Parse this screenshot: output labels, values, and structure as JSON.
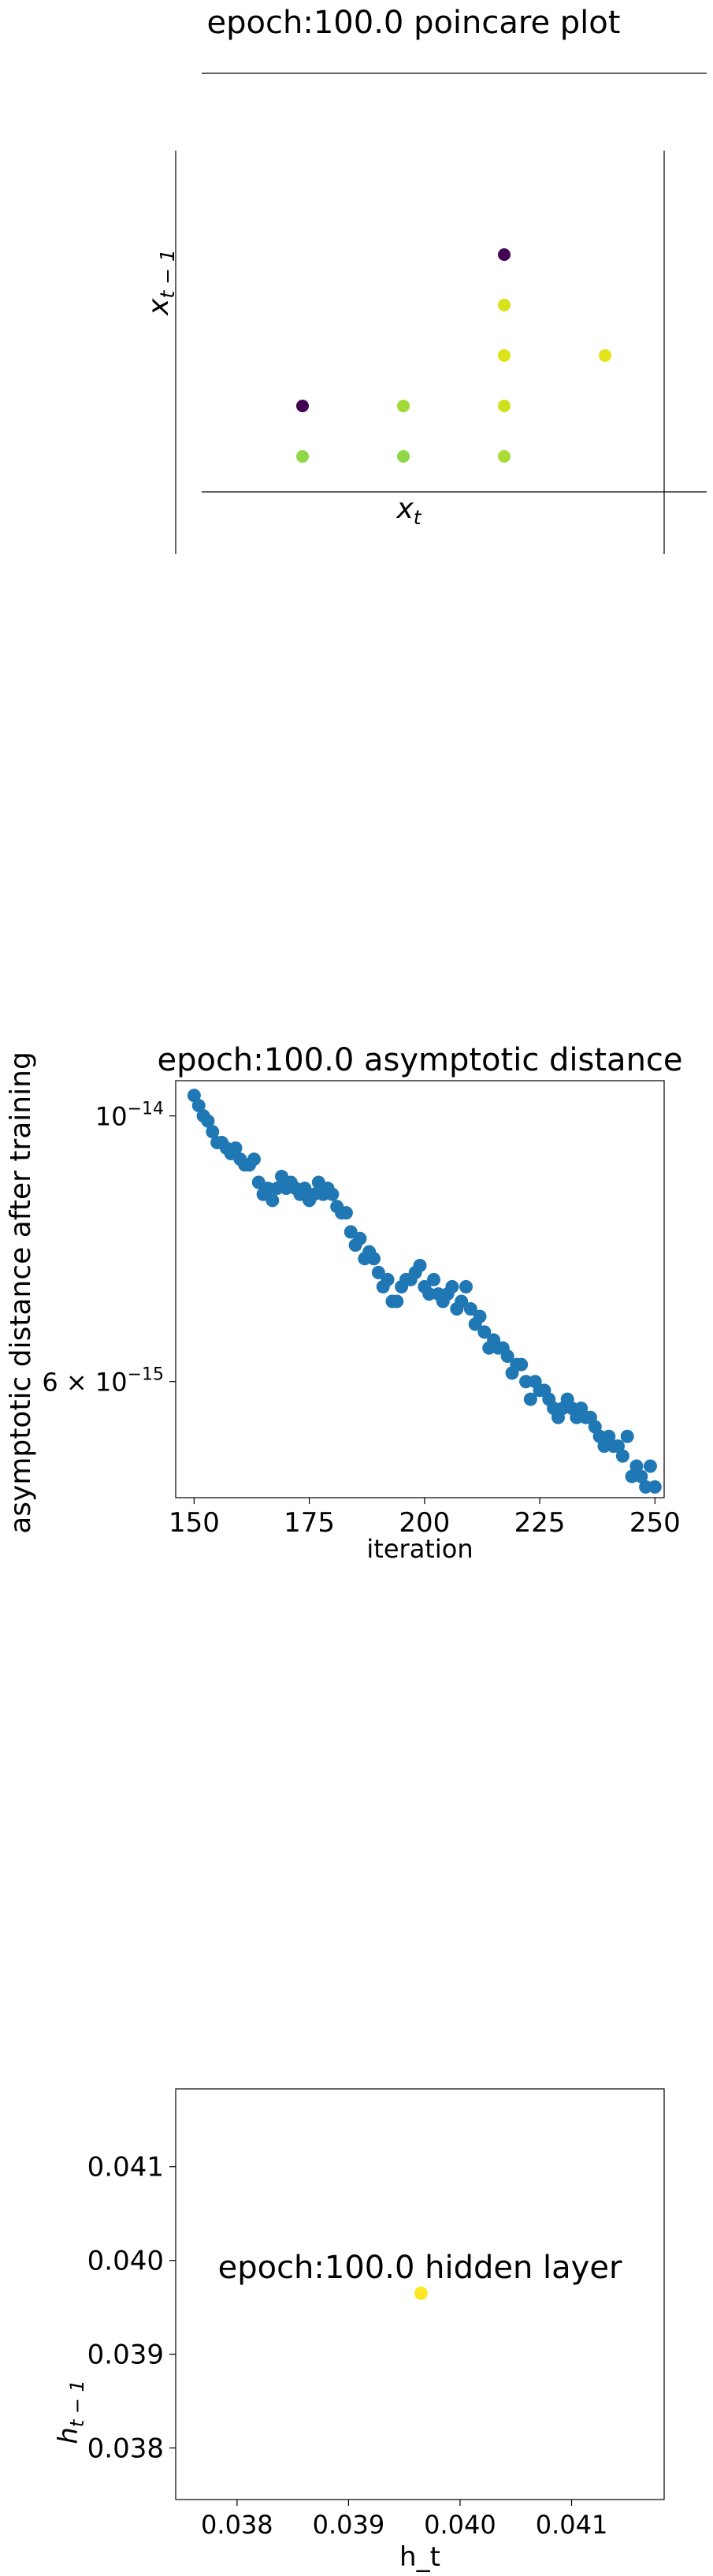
{
  "chart_data": [
    {
      "type": "scatter",
      "title": "epoch:100.0 poincare plot",
      "xlabel": "x_t",
      "ylabel": "x_{t-1}",
      "grid": false,
      "axes_style": "centered spines, no tick labels",
      "colormap": "viridis",
      "points": [
        {
          "x": 1,
          "y": 1,
          "color": "#8fd744"
        },
        {
          "x": 2,
          "y": 1,
          "color": "#8fd744"
        },
        {
          "x": 3,
          "y": 1,
          "color": "#a8db34"
        },
        {
          "x": 1,
          "y": 2,
          "color": "#440154"
        },
        {
          "x": 2,
          "y": 2,
          "color": "#a0da39"
        },
        {
          "x": 3,
          "y": 2,
          "color": "#d0e11c"
        },
        {
          "x": 3,
          "y": 3,
          "color": "#dde318"
        },
        {
          "x": 4,
          "y": 3,
          "color": "#e5e419"
        },
        {
          "x": 3,
          "y": 4,
          "color": "#d8e219"
        },
        {
          "x": 3,
          "y": 5,
          "color": "#440154"
        }
      ]
    },
    {
      "type": "scatter",
      "title": "epoch:100.0 asymptotic distance",
      "xlabel": "iteration",
      "ylabel": "asymptotic distance after training",
      "xlim": [
        146,
        252
      ],
      "ylim": [
        4.8e-15,
        1.07e-14
      ],
      "yscale": "log",
      "xticks": [
        "150",
        "175",
        "200",
        "225",
        "250"
      ],
      "yticks": [
        {
          "value": 1e-14,
          "mantissa": "10",
          "exponent": "−14"
        },
        {
          "value": 6e-15,
          "mantissa": "6 × 10",
          "exponent": "−15"
        }
      ],
      "color": "#1f77b4",
      "grid": false,
      "x": [
        150,
        151,
        152,
        153,
        154,
        155,
        156,
        157,
        158,
        159,
        160,
        161,
        162,
        163,
        164,
        165,
        166,
        167,
        168,
        169,
        170,
        171,
        172,
        173,
        174,
        175,
        176,
        177,
        178,
        179,
        180,
        181,
        182,
        183,
        184,
        185,
        186,
        187,
        188,
        189,
        190,
        191,
        192,
        193,
        194,
        195,
        196,
        197,
        198,
        199,
        200,
        201,
        202,
        203,
        204,
        205,
        206,
        207,
        208,
        209,
        210,
        211,
        212,
        213,
        214,
        215,
        216,
        217,
        218,
        219,
        220,
        221,
        222,
        223,
        224,
        225,
        226,
        227,
        228,
        229,
        230,
        231,
        232,
        233,
        234,
        235,
        236,
        237,
        238,
        239,
        240,
        241,
        242,
        243,
        244,
        245,
        246,
        247,
        248,
        249,
        250
      ],
      "y": [
        1.04e-14,
        1.02e-14,
        1e-14,
        9.9e-15,
        9.7e-15,
        9.5e-15,
        9.5e-15,
        9.4e-15,
        9.3e-15,
        9.4e-15,
        9.2e-15,
        9.1e-15,
        9.1e-15,
        9.2e-15,
        8.8e-15,
        8.6e-15,
        8.7e-15,
        8.5e-15,
        8.7e-15,
        8.9e-15,
        8.7e-15,
        8.8e-15,
        8.7e-15,
        8.6e-15,
        8.7e-15,
        8.5e-15,
        8.6e-15,
        8.8e-15,
        8.6e-15,
        8.7e-15,
        8.6e-15,
        8.4e-15,
        8.3e-15,
        8.3e-15,
        8e-15,
        7.8e-15,
        7.9e-15,
        7.6e-15,
        7.7e-15,
        7.6e-15,
        7.4e-15,
        7.2e-15,
        7.3e-15,
        7e-15,
        7e-15,
        7.2e-15,
        7.3e-15,
        7.3e-15,
        7.4e-15,
        7.5e-15,
        7.2e-15,
        7.1e-15,
        7.3e-15,
        7.1e-15,
        7e-15,
        7.1e-15,
        7.2e-15,
        6.9e-15,
        7e-15,
        7.2e-15,
        6.9e-15,
        6.7e-15,
        6.8e-15,
        6.6e-15,
        6.4e-15,
        6.5e-15,
        6.4e-15,
        6.4e-15,
        6.3e-15,
        6.1e-15,
        6.2e-15,
        6.2e-15,
        6e-15,
        5.8e-15,
        6e-15,
        5.9e-15,
        5.9e-15,
        5.8e-15,
        5.7e-15,
        5.6e-15,
        5.7e-15,
        5.8e-15,
        5.7e-15,
        5.6e-15,
        5.7e-15,
        5.6e-15,
        5.6e-15,
        5.5e-15,
        5.4e-15,
        5.3e-15,
        5.4e-15,
        5.3e-15,
        5.3e-15,
        5.2e-15,
        5.4e-15,
        5e-15,
        5.1e-15,
        5e-15,
        4.9e-15,
        5.1e-15,
        4.9e-15
      ]
    },
    {
      "type": "scatter",
      "title": "epoch:100.0 hidden layer",
      "xlabel": "h_t",
      "ylabel": "h_{t-1}",
      "xlim": [
        0.03745,
        0.04183
      ],
      "ylim": [
        0.03745,
        0.04183
      ],
      "xticks": [
        "0.038",
        "0.039",
        "0.040",
        "0.041"
      ],
      "yticks": [
        "0.038",
        "0.039",
        "0.040",
        "0.041"
      ],
      "grid": false,
      "points": [
        {
          "x": 0.03965,
          "y": 0.03965,
          "color": "#fde725"
        }
      ]
    }
  ]
}
